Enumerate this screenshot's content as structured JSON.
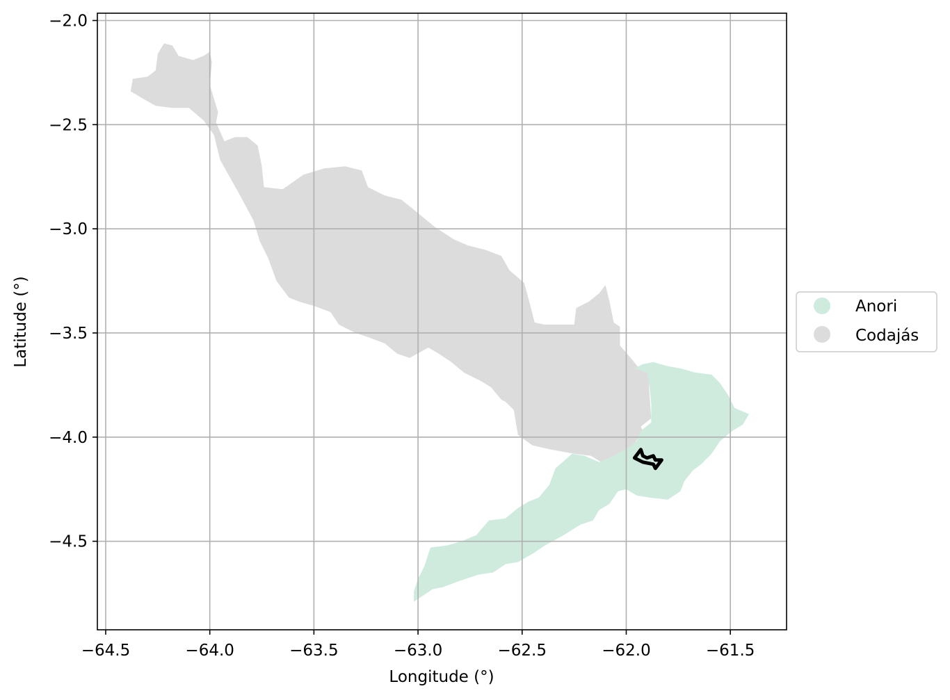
{
  "chart_data": {
    "type": "map",
    "xlabel": "Longitude (°)",
    "ylabel": "Latitude (°)",
    "xlim": [
      -64.54,
      -61.23
    ],
    "ylim": [
      -4.925,
      -1.965
    ],
    "grid": true,
    "legend_placement": "center-right outside",
    "xticks": [
      {
        "value": -64.5,
        "label": "−64.5"
      },
      {
        "value": -64.0,
        "label": "−64.0"
      },
      {
        "value": -63.5,
        "label": "−63.5"
      },
      {
        "value": -63.0,
        "label": "−63.0"
      },
      {
        "value": -62.5,
        "label": "−62.5"
      },
      {
        "value": -62.0,
        "label": "−62.0"
      },
      {
        "value": -61.5,
        "label": "−61.5"
      }
    ],
    "yticks": [
      {
        "value": -2.0,
        "label": "−2.0"
      },
      {
        "value": -2.5,
        "label": "−2.5"
      },
      {
        "value": -3.0,
        "label": "−3.0"
      },
      {
        "value": -3.5,
        "label": "−3.5"
      },
      {
        "value": -4.0,
        "label": "−4.0"
      },
      {
        "value": -4.5,
        "label": "−4.5"
      }
    ],
    "series": [
      {
        "name": "Codajás",
        "color": "#dcdcdc",
        "polygon": [
          [
            -64.38,
            -2.34
          ],
          [
            -64.37,
            -2.28
          ],
          [
            -64.3,
            -2.27
          ],
          [
            -64.26,
            -2.24
          ],
          [
            -64.25,
            -2.16
          ],
          [
            -64.22,
            -2.11
          ],
          [
            -64.18,
            -2.12
          ],
          [
            -64.15,
            -2.17
          ],
          [
            -64.08,
            -2.19
          ],
          [
            -64.03,
            -2.17
          ],
          [
            -64.0,
            -2.15
          ],
          [
            -63.99,
            -2.2
          ],
          [
            -64.0,
            -2.31
          ],
          [
            -63.96,
            -2.44
          ],
          [
            -63.97,
            -2.49
          ],
          [
            -63.93,
            -2.58
          ],
          [
            -63.88,
            -2.56
          ],
          [
            -63.82,
            -2.56
          ],
          [
            -63.77,
            -2.6
          ],
          [
            -63.75,
            -2.7
          ],
          [
            -63.74,
            -2.8
          ],
          [
            -63.65,
            -2.81
          ],
          [
            -63.55,
            -2.74
          ],
          [
            -63.45,
            -2.71
          ],
          [
            -63.35,
            -2.7
          ],
          [
            -63.27,
            -2.72
          ],
          [
            -63.24,
            -2.8
          ],
          [
            -63.16,
            -2.84
          ],
          [
            -63.08,
            -2.86
          ],
          [
            -63.03,
            -2.9
          ],
          [
            -62.92,
            -2.99
          ],
          [
            -62.83,
            -3.05
          ],
          [
            -62.76,
            -3.08
          ],
          [
            -62.68,
            -3.1
          ],
          [
            -62.6,
            -3.13
          ],
          [
            -62.56,
            -3.2
          ],
          [
            -62.49,
            -3.26
          ],
          [
            -62.46,
            -3.37
          ],
          [
            -62.44,
            -3.45
          ],
          [
            -62.39,
            -3.46
          ],
          [
            -62.25,
            -3.46
          ],
          [
            -62.24,
            -3.38
          ],
          [
            -62.18,
            -3.35
          ],
          [
            -62.13,
            -3.31
          ],
          [
            -62.1,
            -3.27
          ],
          [
            -62.08,
            -3.35
          ],
          [
            -62.06,
            -3.45
          ],
          [
            -62.03,
            -3.47
          ],
          [
            -62.03,
            -3.56
          ],
          [
            -61.97,
            -3.63
          ],
          [
            -61.93,
            -3.68
          ],
          [
            -61.89,
            -3.69
          ],
          [
            -61.89,
            -3.77
          ],
          [
            -61.88,
            -3.91
          ],
          [
            -61.93,
            -3.95
          ],
          [
            -61.92,
            -3.97
          ],
          [
            -61.96,
            -4.03
          ],
          [
            -62.0,
            -4.09
          ],
          [
            -62.04,
            -4.09
          ],
          [
            -62.08,
            -4.1
          ],
          [
            -62.12,
            -4.12
          ],
          [
            -62.17,
            -4.09
          ],
          [
            -62.25,
            -4.08
          ],
          [
            -62.36,
            -4.06
          ],
          [
            -62.45,
            -4.04
          ],
          [
            -62.52,
            -3.99
          ],
          [
            -62.54,
            -3.87
          ],
          [
            -62.58,
            -3.83
          ],
          [
            -62.6,
            -3.82
          ],
          [
            -62.65,
            -3.76
          ],
          [
            -62.7,
            -3.73
          ],
          [
            -62.78,
            -3.69
          ],
          [
            -62.84,
            -3.64
          ],
          [
            -62.9,
            -3.6
          ],
          [
            -62.95,
            -3.57
          ],
          [
            -63.04,
            -3.62
          ],
          [
            -63.1,
            -3.6
          ],
          [
            -63.16,
            -3.55
          ],
          [
            -63.24,
            -3.52
          ],
          [
            -63.3,
            -3.5
          ],
          [
            -63.38,
            -3.46
          ],
          [
            -63.42,
            -3.4
          ],
          [
            -63.5,
            -3.37
          ],
          [
            -63.57,
            -3.35
          ],
          [
            -63.62,
            -3.33
          ],
          [
            -63.68,
            -3.25
          ],
          [
            -63.72,
            -3.14
          ],
          [
            -63.76,
            -3.06
          ],
          [
            -63.79,
            -2.96
          ],
          [
            -63.86,
            -2.83
          ],
          [
            -63.95,
            -2.67
          ],
          [
            -63.98,
            -2.55
          ],
          [
            -64.03,
            -2.48
          ],
          [
            -64.1,
            -2.42
          ],
          [
            -64.18,
            -2.42
          ],
          [
            -64.26,
            -2.41
          ],
          [
            -64.33,
            -2.37
          ]
        ]
      },
      {
        "name": "Anori",
        "color": "#ceebde",
        "polygon": [
          [
            -61.98,
            -3.68
          ],
          [
            -61.92,
            -3.65
          ],
          [
            -61.87,
            -3.64
          ],
          [
            -61.8,
            -3.66
          ],
          [
            -61.74,
            -3.67
          ],
          [
            -61.67,
            -3.69
          ],
          [
            -61.59,
            -3.7
          ],
          [
            -61.55,
            -3.74
          ],
          [
            -61.51,
            -3.8
          ],
          [
            -61.48,
            -3.86
          ],
          [
            -61.41,
            -3.89
          ],
          [
            -61.44,
            -3.94
          ],
          [
            -61.49,
            -3.97
          ],
          [
            -61.55,
            -4.02
          ],
          [
            -61.59,
            -4.08
          ],
          [
            -61.64,
            -4.13
          ],
          [
            -61.68,
            -4.16
          ],
          [
            -61.72,
            -4.21
          ],
          [
            -61.74,
            -4.26
          ],
          [
            -61.8,
            -4.3
          ],
          [
            -61.89,
            -4.29
          ],
          [
            -61.95,
            -4.28
          ],
          [
            -62.0,
            -4.25
          ],
          [
            -62.04,
            -4.26
          ],
          [
            -62.08,
            -4.32
          ],
          [
            -62.13,
            -4.35
          ],
          [
            -62.16,
            -4.4
          ],
          [
            -62.22,
            -4.42
          ],
          [
            -62.3,
            -4.47
          ],
          [
            -62.39,
            -4.52
          ],
          [
            -62.45,
            -4.56
          ],
          [
            -62.52,
            -4.6
          ],
          [
            -62.58,
            -4.61
          ],
          [
            -62.64,
            -4.65
          ],
          [
            -62.71,
            -4.66
          ],
          [
            -62.8,
            -4.69
          ],
          [
            -62.88,
            -4.72
          ],
          [
            -62.93,
            -4.73
          ],
          [
            -62.99,
            -4.77
          ],
          [
            -63.02,
            -4.79
          ],
          [
            -63.02,
            -4.74
          ],
          [
            -63.0,
            -4.68
          ],
          [
            -62.97,
            -4.62
          ],
          [
            -62.94,
            -4.53
          ],
          [
            -62.86,
            -4.52
          ],
          [
            -62.79,
            -4.5
          ],
          [
            -62.72,
            -4.47
          ],
          [
            -62.66,
            -4.4
          ],
          [
            -62.58,
            -4.39
          ],
          [
            -62.52,
            -4.34
          ],
          [
            -62.47,
            -4.31
          ],
          [
            -62.42,
            -4.29
          ],
          [
            -62.37,
            -4.23
          ],
          [
            -62.34,
            -4.15
          ],
          [
            -62.26,
            -4.08
          ],
          [
            -62.2,
            -4.09
          ],
          [
            -62.13,
            -4.12
          ],
          [
            -62.06,
            -4.09
          ],
          [
            -61.99,
            -4.05
          ],
          [
            -61.95,
            -4.02
          ],
          [
            -61.93,
            -3.97
          ],
          [
            -61.88,
            -3.93
          ],
          [
            -61.88,
            -3.84
          ],
          [
            -61.89,
            -3.74
          ],
          [
            -61.9,
            -3.69
          ],
          [
            -61.96,
            -3.67
          ]
        ]
      },
      {
        "outline": true,
        "color": "#000000",
        "polyline": [
          [
            -61.93,
            -4.06
          ],
          [
            -61.96,
            -4.1
          ],
          [
            -61.92,
            -4.12
          ],
          [
            -61.87,
            -4.13
          ],
          [
            -61.86,
            -4.15
          ],
          [
            -61.83,
            -4.11
          ],
          [
            -61.86,
            -4.11
          ],
          [
            -61.87,
            -4.09
          ],
          [
            -61.9,
            -4.1
          ],
          [
            -61.92,
            -4.09
          ],
          [
            -61.93,
            -4.06
          ]
        ]
      }
    ],
    "legend": [
      {
        "label": "Anori",
        "color": "#ceebde"
      },
      {
        "label": "Codajás",
        "color": "#dcdcdc"
      }
    ]
  }
}
